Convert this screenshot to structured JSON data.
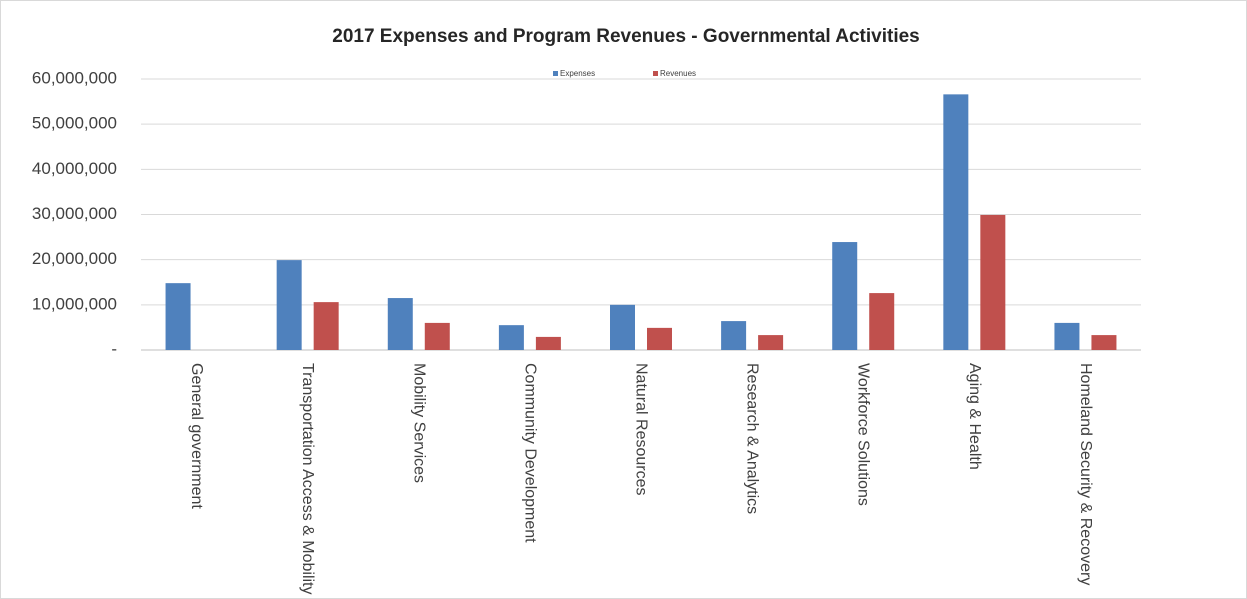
{
  "chart_data": {
    "type": "bar",
    "title": "2017  Expenses and Program Revenues - Governmental Activities",
    "categories": [
      "General government",
      "Transportation Access & Mobility",
      "Mobility Services",
      "Community Development",
      "Natural Resources",
      "Research & Analytics",
      "Workforce Solutions",
      "Aging & Health",
      "Homeland Security & Recovery"
    ],
    "series": [
      {
        "name": "Expenses",
        "color": "#4f81bd",
        "values": [
          14800000,
          19900000,
          11500000,
          5500000,
          10000000,
          6400000,
          23900000,
          56600000,
          6000000
        ]
      },
      {
        "name": "Revenues",
        "color": "#c0504d",
        "values": [
          0,
          10600000,
          6000000,
          2900000,
          4900000,
          3300000,
          12600000,
          29900000,
          3300000
        ]
      }
    ],
    "ylim": [
      0,
      60000000
    ],
    "yticks": [
      {
        "value": 0,
        "label": "-"
      },
      {
        "value": 10000000,
        "label": "10,000,000"
      },
      {
        "value": 20000000,
        "label": "20,000,000"
      },
      {
        "value": 30000000,
        "label": "30,000,000"
      },
      {
        "value": 40000000,
        "label": "40,000,000"
      },
      {
        "value": 50000000,
        "label": "50,000,000"
      },
      {
        "value": 60000000,
        "label": "60,000,000"
      }
    ],
    "grid": true,
    "legend": "top"
  }
}
